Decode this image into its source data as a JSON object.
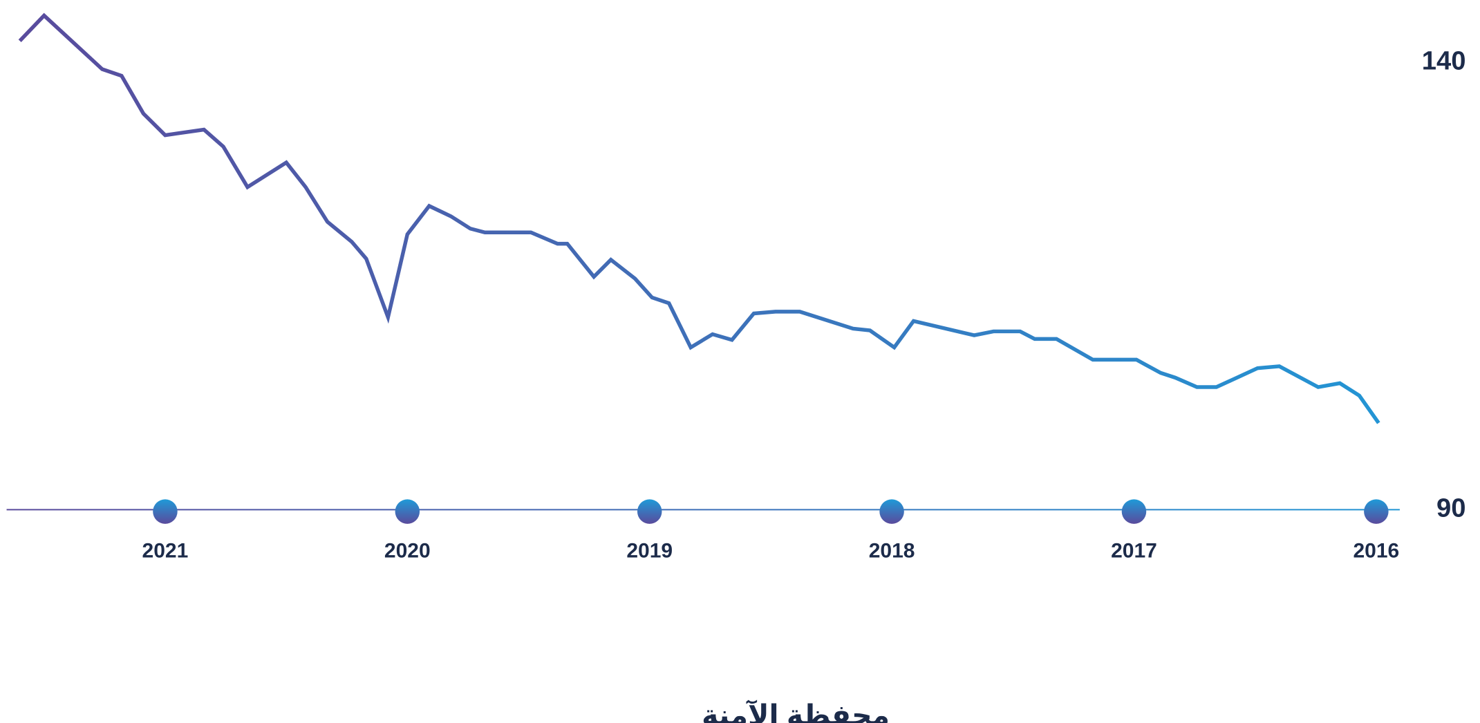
{
  "chart_data": {
    "type": "line",
    "series": [
      {
        "name": "محفظة الآمنة",
        "gradient": [
          "#5a4a9c",
          "#1f9ad8"
        ],
        "x": [
          2021.6,
          2021.5,
          2021.26,
          2021.18,
          2021.09,
          2021.0,
          2020.84,
          2020.76,
          2020.66,
          2020.5,
          2020.42,
          2020.33,
          2020.23,
          2020.17,
          2020.08,
          2020.0,
          2019.91,
          2019.82,
          2019.74,
          2019.68,
          2019.49,
          2019.38,
          2019.34,
          2019.23,
          2019.16,
          2019.06,
          2018.99,
          2018.92,
          2018.83,
          2018.74,
          2018.66,
          2018.57,
          2018.48,
          2018.38,
          2018.16,
          2018.09,
          2017.99,
          2017.91,
          2017.66,
          2017.58,
          2017.47,
          2017.41,
          2017.32,
          2017.17,
          2016.99,
          2016.89,
          2016.83,
          2016.74,
          2016.66,
          2016.49,
          2016.4,
          2016.24,
          2016.15,
          2016.07,
          2015.99
        ],
        "values": [
          142.43,
          145.27,
          139.26,
          138.52,
          134.3,
          131.88,
          132.51,
          130.61,
          126.08,
          128.82,
          126.08,
          122.19,
          119.97,
          118.07,
          111.52,
          120.8,
          123.97,
          122.81,
          121.43,
          121.01,
          121.01,
          119.75,
          119.75,
          116.05,
          117.95,
          115.84,
          113.73,
          113.1,
          108.14,
          109.62,
          108.99,
          111.94,
          112.15,
          112.15,
          110.25,
          110.04,
          108.14,
          111.1,
          109.51,
          109.94,
          109.94,
          109.09,
          109.09,
          106.77,
          106.77,
          105.3,
          104.77,
          103.71,
          103.71,
          105.82,
          106.03,
          103.71,
          104.14,
          102.76,
          99.7
        ]
      }
    ],
    "xlim": [
      2015.9,
      2021.65
    ],
    "x_reversed": true,
    "xticks": [
      2016,
      2017,
      2018,
      2019,
      2020,
      2021
    ],
    "ylim": [
      90,
      147
    ],
    "yticks": [
      90,
      140
    ],
    "y_axis_side": "right",
    "legend": "bottom"
  }
}
